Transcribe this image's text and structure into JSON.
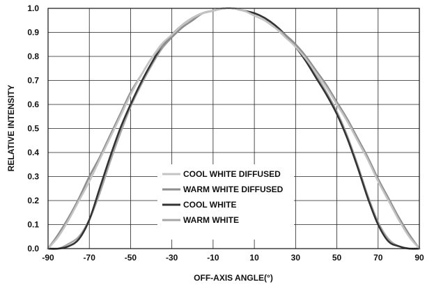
{
  "chart_data": {
    "type": "line",
    "title": "",
    "xlabel": "OFF-AXIS ANGLE(°)",
    "ylabel": "RELATIVE INTENSITY",
    "xlim": [
      -90,
      90
    ],
    "ylim": [
      0,
      1.0
    ],
    "x_ticks": [
      "-90",
      "-70",
      "-50",
      "-30",
      "-10",
      "10",
      "30",
      "50",
      "70",
      "90"
    ],
    "y_ticks": [
      "0.0",
      "0.1",
      "0.2",
      "0.3",
      "0.4",
      "0.5",
      "0.6",
      "0.7",
      "0.8",
      "0.9",
      "1.0"
    ],
    "grid": true,
    "legend_position": "bottom-center",
    "series": [
      {
        "name": "COOL WHITE DIFFUSED",
        "color": "#c4c4c4",
        "x": [
          -90,
          -85,
          -80,
          -75,
          -70,
          -65,
          -60,
          -55,
          -50,
          -45,
          -40,
          -35,
          -30,
          -25,
          -20,
          -15,
          -10,
          -5,
          0,
          5,
          10,
          15,
          20,
          25,
          30,
          35,
          40,
          45,
          50,
          55,
          60,
          65,
          70,
          75,
          80,
          85,
          90
        ],
        "y": [
          0.0,
          0.05,
          0.12,
          0.2,
          0.28,
          0.37,
          0.46,
          0.55,
          0.64,
          0.72,
          0.79,
          0.85,
          0.89,
          0.93,
          0.96,
          0.98,
          0.99,
          1.0,
          1.0,
          0.99,
          0.97,
          0.95,
          0.92,
          0.88,
          0.84,
          0.79,
          0.73,
          0.67,
          0.6,
          0.53,
          0.45,
          0.37,
          0.28,
          0.2,
          0.12,
          0.05,
          0.0
        ]
      },
      {
        "name": "WARM WHITE DIFFUSED",
        "color": "#8e8e8e",
        "x": [
          -90,
          -85,
          -80,
          -75,
          -70,
          -65,
          -60,
          -55,
          -50,
          -45,
          -40,
          -35,
          -30,
          -25,
          -20,
          -15,
          -10,
          -5,
          0,
          5,
          10,
          15,
          20,
          25,
          30,
          35,
          40,
          45,
          50,
          55,
          60,
          65,
          70,
          75,
          80,
          85,
          90
        ],
        "y": [
          0.0,
          0.06,
          0.13,
          0.21,
          0.3,
          0.38,
          0.47,
          0.56,
          0.65,
          0.72,
          0.79,
          0.84,
          0.88,
          0.92,
          0.95,
          0.98,
          0.99,
          1.0,
          1.0,
          0.99,
          0.97,
          0.95,
          0.92,
          0.89,
          0.85,
          0.8,
          0.74,
          0.68,
          0.61,
          0.54,
          0.46,
          0.38,
          0.29,
          0.21,
          0.13,
          0.06,
          0.0
        ]
      },
      {
        "name": "COOL WHITE",
        "color": "#333333",
        "x": [
          -90,
          -85,
          -80,
          -75,
          -70,
          -65,
          -60,
          -55,
          -50,
          -45,
          -40,
          -35,
          -30,
          -25,
          -20,
          -15,
          -10,
          -5,
          0,
          5,
          10,
          15,
          20,
          25,
          30,
          35,
          40,
          45,
          50,
          55,
          60,
          65,
          70,
          75,
          80,
          85,
          90
        ],
        "y": [
          0.0,
          0.0,
          0.01,
          0.04,
          0.12,
          0.25,
          0.38,
          0.5,
          0.6,
          0.69,
          0.77,
          0.84,
          0.89,
          0.93,
          0.96,
          0.98,
          0.99,
          1.0,
          1.0,
          0.99,
          0.98,
          0.96,
          0.93,
          0.89,
          0.84,
          0.78,
          0.71,
          0.64,
          0.56,
          0.46,
          0.34,
          0.21,
          0.1,
          0.03,
          0.01,
          0.0,
          0.0
        ]
      },
      {
        "name": "WARM WHITE",
        "color": "#a6a6a6",
        "x": [
          -90,
          -85,
          -80,
          -75,
          -70,
          -65,
          -60,
          -55,
          -50,
          -45,
          -40,
          -35,
          -30,
          -25,
          -20,
          -15,
          -10,
          -5,
          0,
          5,
          10,
          15,
          20,
          25,
          30,
          35,
          40,
          45,
          50,
          55,
          60,
          65,
          70,
          75,
          80,
          85,
          90
        ],
        "y": [
          0.0,
          0.0,
          0.02,
          0.05,
          0.12,
          0.23,
          0.36,
          0.48,
          0.59,
          0.68,
          0.76,
          0.83,
          0.88,
          0.93,
          0.96,
          0.98,
          0.99,
          1.0,
          1.0,
          0.99,
          0.98,
          0.96,
          0.93,
          0.89,
          0.85,
          0.79,
          0.72,
          0.65,
          0.57,
          0.47,
          0.35,
          0.22,
          0.11,
          0.04,
          0.01,
          0.0,
          0.0
        ]
      }
    ]
  }
}
